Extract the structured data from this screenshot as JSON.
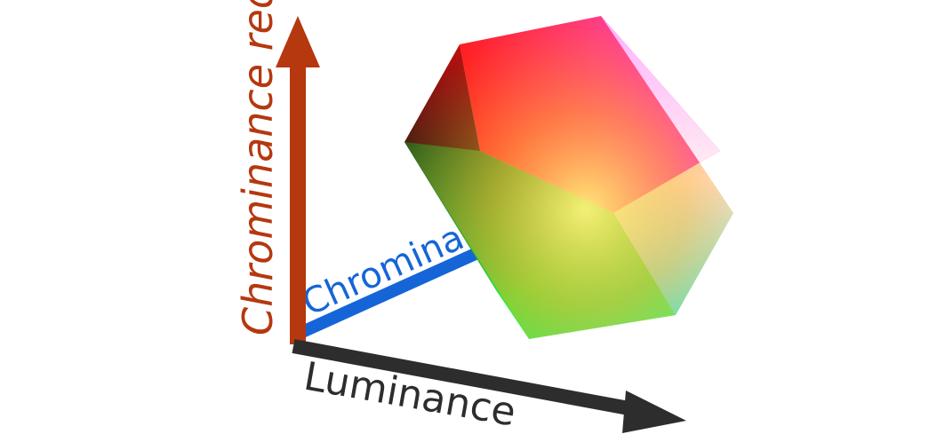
{
  "axes": {
    "vertical_label": "Chrominance red",
    "depth_label": "Chrominance",
    "horizontal_label": "Luminance"
  },
  "colors": {
    "vertical_axis": "#b5380f",
    "depth_axis": "#1565d8",
    "horizontal_axis": "#2d2d2d",
    "cube_faces": {
      "top_left": "#d40000",
      "top": "#ff2a2a",
      "top_right": "#ff3ad8",
      "right": "#ffd0f0",
      "bottom_right": "#30f0e0",
      "bottom": "#25ff3a",
      "center": "#ffe060",
      "left": "#101010"
    }
  },
  "icons": [
    "arrowhead-up-icon",
    "arrowhead-right-icon"
  ]
}
